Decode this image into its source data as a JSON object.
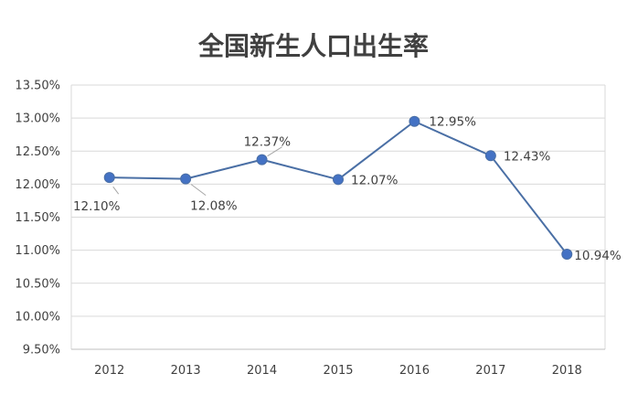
{
  "chart_data": {
    "type": "line",
    "title": "全国新生人口出生率",
    "xlabel": "",
    "ylabel": "",
    "categories": [
      "2012",
      "2013",
      "2014",
      "2015",
      "2016",
      "2017",
      "2018"
    ],
    "series": [
      {
        "values": [
          12.1,
          12.08,
          12.37,
          12.07,
          12.95,
          12.43,
          10.94
        ],
        "labels": [
          "12.10%",
          "12.08%",
          "12.37%",
          "12.07%",
          "12.95%",
          "12.43%",
          "10.94%"
        ]
      }
    ],
    "ylim": [
      9.5,
      13.5
    ],
    "yticks": [
      9.5,
      10.0,
      10.5,
      11.0,
      11.5,
      12.0,
      12.5,
      13.0,
      13.5
    ],
    "ytick_labels": [
      "9.50%",
      "10.00%",
      "10.50%",
      "11.00%",
      "11.50%",
      "12.00%",
      "12.50%",
      "13.00%",
      "13.50%"
    ],
    "grid": true,
    "legend": "none",
    "colors": {
      "line": "#4a6fa5",
      "marker": "#4472c4",
      "grid": "#d9d9d9",
      "text": "#404040"
    }
  }
}
